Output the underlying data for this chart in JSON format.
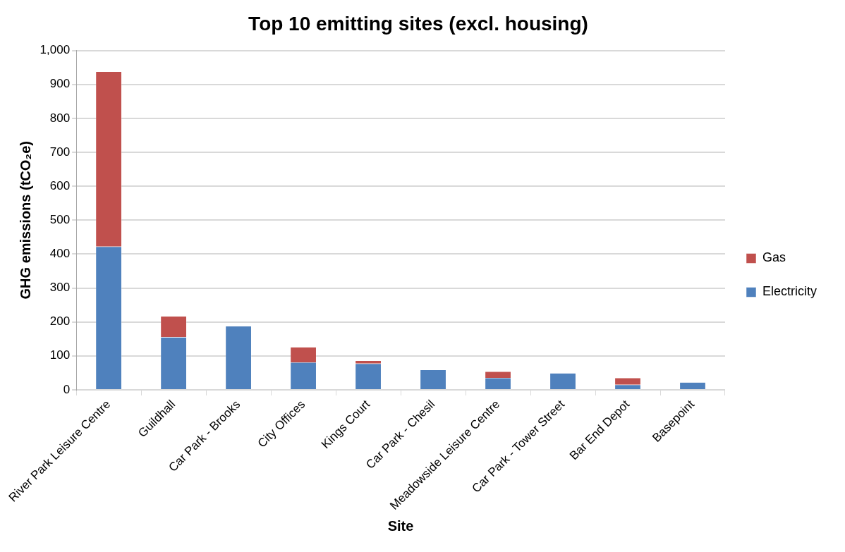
{
  "chart_data": {
    "type": "bar",
    "title": "Top 10 emitting sites (excl. housing)",
    "xlabel": "Site",
    "ylabel": "GHG emissions (tCO₂e)",
    "categories": [
      "River Park Leisure Centre",
      "Guildhall",
      "Car Park - Brooks",
      "City Offices",
      "Kings Court",
      "Car Park - Chesil",
      "Meadowside Leisure Centre",
      "Car Park - Tower Street",
      "Bar End Depot",
      "Basepoint"
    ],
    "series": [
      {
        "name": "Electricity",
        "color": "#4f81bd",
        "values": [
          422,
          155,
          188,
          81,
          77,
          59,
          35,
          49,
          15,
          22
        ]
      },
      {
        "name": "Gas",
        "color": "#c0504d",
        "values": [
          516,
          62,
          0,
          45,
          9,
          0,
          19,
          0,
          20,
          0
        ]
      }
    ],
    "stacked": true,
    "ylim": [
      0,
      1000
    ],
    "yticks": [
      {
        "value": 0,
        "label": "0"
      },
      {
        "value": 100,
        "label": "100"
      },
      {
        "value": 200,
        "label": "200"
      },
      {
        "value": 300,
        "label": "300"
      },
      {
        "value": 400,
        "label": "400"
      },
      {
        "value": 500,
        "label": "500"
      },
      {
        "value": 600,
        "label": "600"
      },
      {
        "value": 700,
        "label": "700"
      },
      {
        "value": 800,
        "label": "800"
      },
      {
        "value": 900,
        "label": "900"
      },
      {
        "value": 1000,
        "label": "1,000"
      }
    ],
    "grid": "y",
    "legend": "right"
  }
}
